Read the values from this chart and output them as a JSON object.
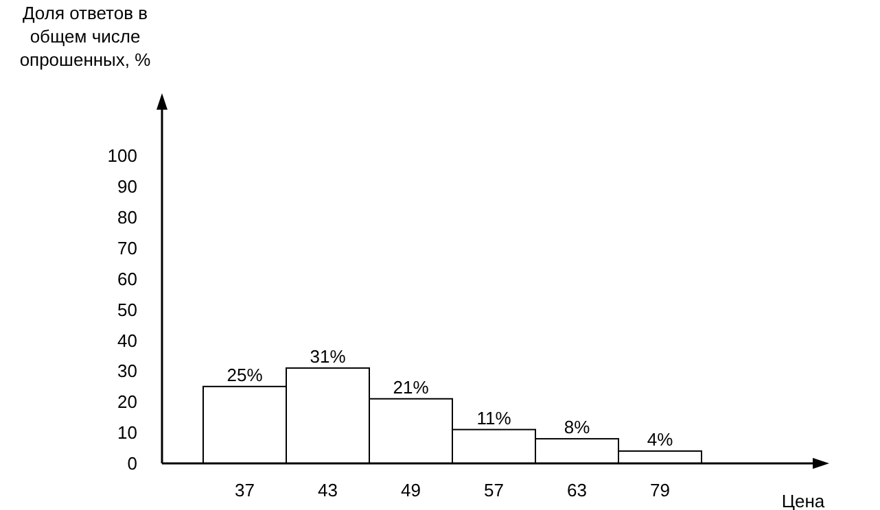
{
  "chart_data": {
    "type": "bar",
    "ylabel": "Доля ответов в\nобщем числе\nопрошенных, %",
    "xlabel": "Цена",
    "categories": [
      "37",
      "43",
      "49",
      "57",
      "63",
      "79"
    ],
    "values": [
      25,
      31,
      21,
      11,
      8,
      4
    ],
    "value_labels": [
      "25%",
      "31%",
      "21%",
      "11%",
      "8%",
      "4%"
    ],
    "color": "#ffffff",
    "ylim": [
      0,
      115
    ],
    "yticks": [
      0,
      10,
      20,
      30,
      40,
      50,
      60,
      70,
      80,
      90,
      100
    ],
    "grid": false
  }
}
